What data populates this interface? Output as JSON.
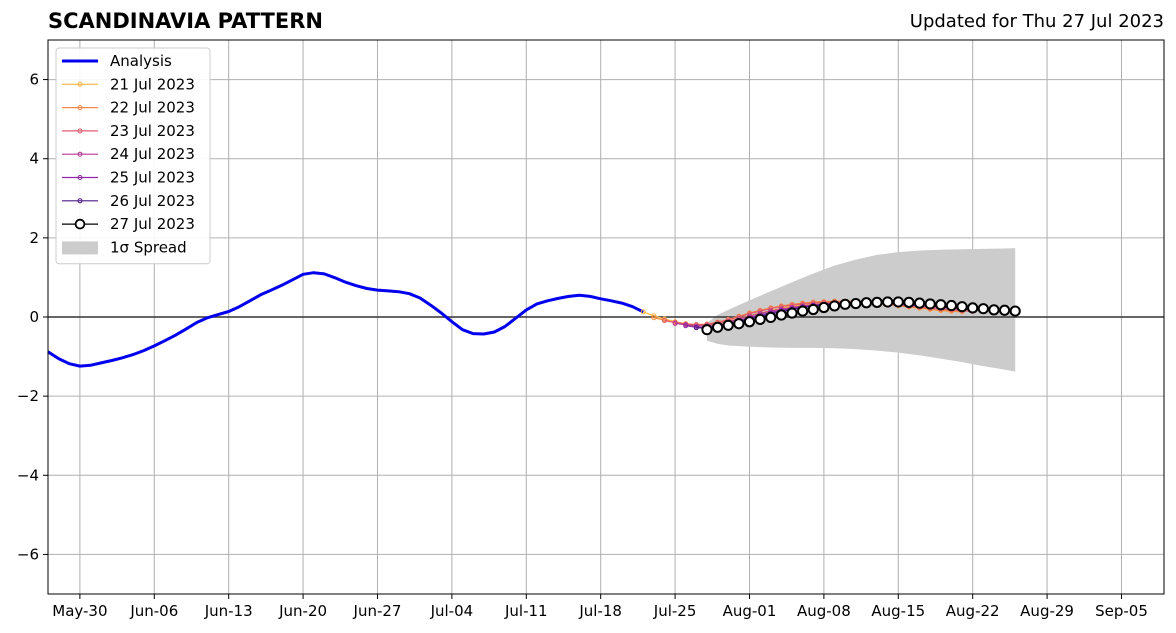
{
  "chart_data": {
    "type": "line",
    "title": "SCANDINAVIA PATTERN",
    "subtitle": "Updated for Thu 27 Jul 2023",
    "xlabel": "",
    "ylabel": "",
    "xlim": [
      "2023-05-27",
      "2023-09-09"
    ],
    "ylim": [
      -7,
      7
    ],
    "yticks": [
      -6,
      -4,
      -2,
      0,
      2,
      4,
      6
    ],
    "ytick_labels": [
      "−6",
      "−4",
      "−2",
      "0",
      "2",
      "4",
      "6"
    ],
    "xticks": [
      "2023-05-30",
      "2023-06-06",
      "2023-06-13",
      "2023-06-20",
      "2023-06-27",
      "2023-07-04",
      "2023-07-11",
      "2023-07-18",
      "2023-07-25",
      "2023-08-01",
      "2023-08-08",
      "2023-08-15",
      "2023-08-22",
      "2023-08-29",
      "2023-09-05"
    ],
    "xtick_labels": [
      "May-30",
      "Jun-06",
      "Jun-13",
      "Jun-20",
      "Jun-27",
      "Jul-04",
      "Jul-11",
      "Jul-18",
      "Jul-25",
      "Aug-01",
      "Aug-08",
      "Aug-15",
      "Aug-22",
      "Aug-29",
      "Sep-05"
    ],
    "grid": true,
    "legend_position": "top-left",
    "series": [
      {
        "name": "Analysis",
        "color": "#0000ee",
        "style": "thick-line",
        "x": [
          "2023-05-27",
          "2023-05-28",
          "2023-05-29",
          "2023-05-30",
          "2023-05-31",
          "2023-06-01",
          "2023-06-02",
          "2023-06-03",
          "2023-06-04",
          "2023-06-05",
          "2023-06-06",
          "2023-06-07",
          "2023-06-08",
          "2023-06-09",
          "2023-06-10",
          "2023-06-11",
          "2023-06-12",
          "2023-06-13",
          "2023-06-14",
          "2023-06-15",
          "2023-06-16",
          "2023-06-17",
          "2023-06-18",
          "2023-06-19",
          "2023-06-20",
          "2023-06-21",
          "2023-06-22",
          "2023-06-23",
          "2023-06-24",
          "2023-06-25",
          "2023-06-26",
          "2023-06-27",
          "2023-06-28",
          "2023-06-29",
          "2023-06-30",
          "2023-07-01",
          "2023-07-02",
          "2023-07-03",
          "2023-07-04",
          "2023-07-05",
          "2023-07-06",
          "2023-07-07",
          "2023-07-08",
          "2023-07-09",
          "2023-07-10",
          "2023-07-11",
          "2023-07-12",
          "2023-07-13",
          "2023-07-14",
          "2023-07-15",
          "2023-07-16",
          "2023-07-17",
          "2023-07-18",
          "2023-07-19",
          "2023-07-20",
          "2023-07-21",
          "2023-07-22"
        ],
        "y": [
          -0.88,
          -1.05,
          -1.18,
          -1.24,
          -1.22,
          -1.16,
          -1.1,
          -1.03,
          -0.95,
          -0.85,
          -0.73,
          -0.6,
          -0.46,
          -0.3,
          -0.14,
          -0.02,
          0.06,
          0.14,
          0.26,
          0.41,
          0.56,
          0.68,
          0.8,
          0.94,
          1.08,
          1.12,
          1.09,
          0.99,
          0.88,
          0.79,
          0.72,
          0.68,
          0.66,
          0.64,
          0.59,
          0.48,
          0.3,
          0.1,
          -0.12,
          -0.32,
          -0.42,
          -0.43,
          -0.38,
          -0.24,
          -0.03,
          0.18,
          0.33,
          0.41,
          0.47,
          0.52,
          0.55,
          0.52,
          0.46,
          0.41,
          0.35,
          0.26,
          0.13
        ]
      },
      {
        "name": "21 Jul 2023",
        "color": "#ffb445",
        "style": "small-marker",
        "x": [
          "2023-07-22",
          "2023-07-23",
          "2023-07-24",
          "2023-07-25",
          "2023-07-26",
          "2023-07-27",
          "2023-07-28",
          "2023-07-29",
          "2023-07-30",
          "2023-07-31",
          "2023-08-01",
          "2023-08-02",
          "2023-08-03",
          "2023-08-04",
          "2023-08-05",
          "2023-08-06",
          "2023-08-07",
          "2023-08-08",
          "2023-08-09",
          "2023-08-10",
          "2023-08-11",
          "2023-08-12",
          "2023-08-13",
          "2023-08-14",
          "2023-08-15",
          "2023-08-16",
          "2023-08-17",
          "2023-08-18",
          "2023-08-19",
          "2023-08-20"
        ],
        "y": [
          0.13,
          0.03,
          -0.05,
          -0.12,
          -0.17,
          -0.2,
          -0.2,
          -0.16,
          -0.1,
          -0.04,
          0.03,
          0.1,
          0.16,
          0.22,
          0.27,
          0.31,
          0.34,
          0.36,
          0.38,
          0.38,
          0.37,
          0.35,
          0.33,
          0.31,
          0.28,
          0.25,
          0.22,
          0.19,
          0.16,
          0.14
        ]
      },
      {
        "name": "22 Jul 2023",
        "color": "#f58a45",
        "style": "small-marker",
        "x": [
          "2023-07-23",
          "2023-07-24",
          "2023-07-25",
          "2023-07-26",
          "2023-07-27",
          "2023-07-28",
          "2023-07-29",
          "2023-07-30",
          "2023-07-31",
          "2023-08-01",
          "2023-08-02",
          "2023-08-03",
          "2023-08-04",
          "2023-08-05",
          "2023-08-06",
          "2023-08-07",
          "2023-08-08",
          "2023-08-09",
          "2023-08-10",
          "2023-08-11",
          "2023-08-12",
          "2023-08-13",
          "2023-08-14",
          "2023-08-15",
          "2023-08-16",
          "2023-08-17",
          "2023-08-18",
          "2023-08-19",
          "2023-08-20",
          "2023-08-21"
        ],
        "y": [
          -0.02,
          -0.08,
          -0.13,
          -0.17,
          -0.19,
          -0.18,
          -0.13,
          -0.06,
          0.02,
          0.1,
          0.17,
          0.23,
          0.28,
          0.32,
          0.35,
          0.38,
          0.39,
          0.4,
          0.4,
          0.39,
          0.37,
          0.35,
          0.32,
          0.29,
          0.26,
          0.23,
          0.2,
          0.17,
          0.15,
          0.13
        ]
      },
      {
        "name": "23 Jul 2023",
        "color": "#e05c6e",
        "style": "small-marker",
        "x": [
          "2023-07-24",
          "2023-07-25",
          "2023-07-26",
          "2023-07-27",
          "2023-07-28",
          "2023-07-29",
          "2023-07-30",
          "2023-07-31",
          "2023-08-01",
          "2023-08-02",
          "2023-08-03",
          "2023-08-04",
          "2023-08-05",
          "2023-08-06",
          "2023-08-07",
          "2023-08-08",
          "2023-08-09",
          "2023-08-10",
          "2023-08-11",
          "2023-08-12",
          "2023-08-13",
          "2023-08-14",
          "2023-08-15",
          "2023-08-16",
          "2023-08-17",
          "2023-08-18",
          "2023-08-19",
          "2023-08-20",
          "2023-08-21",
          "2023-08-22"
        ],
        "y": [
          -0.09,
          -0.14,
          -0.18,
          -0.2,
          -0.19,
          -0.14,
          -0.07,
          0.0,
          0.08,
          0.15,
          0.21,
          0.26,
          0.3,
          0.33,
          0.35,
          0.37,
          0.38,
          0.38,
          0.37,
          0.36,
          0.34,
          0.32,
          0.3,
          0.27,
          0.25,
          0.22,
          0.2,
          0.18,
          0.16,
          0.14
        ]
      },
      {
        "name": "24 Jul 2023",
        "color": "#b5388f",
        "style": "small-marker",
        "x": [
          "2023-07-25",
          "2023-07-26",
          "2023-07-27",
          "2023-07-28",
          "2023-07-29",
          "2023-07-30",
          "2023-07-31",
          "2023-08-01",
          "2023-08-02",
          "2023-08-03",
          "2023-08-04",
          "2023-08-05",
          "2023-08-06",
          "2023-08-07",
          "2023-08-08",
          "2023-08-09",
          "2023-08-10",
          "2023-08-11",
          "2023-08-12",
          "2023-08-13",
          "2023-08-14",
          "2023-08-15",
          "2023-08-16",
          "2023-08-17",
          "2023-08-18",
          "2023-08-19",
          "2023-08-20",
          "2023-08-21",
          "2023-08-22",
          "2023-08-23"
        ],
        "y": [
          -0.16,
          -0.2,
          -0.23,
          -0.22,
          -0.18,
          -0.12,
          -0.05,
          0.02,
          0.09,
          0.15,
          0.2,
          0.24,
          0.28,
          0.31,
          0.33,
          0.35,
          0.36,
          0.36,
          0.36,
          0.35,
          0.34,
          0.32,
          0.3,
          0.28,
          0.26,
          0.24,
          0.22,
          0.2,
          0.18,
          0.16
        ]
      },
      {
        "name": "25 Jul 2023",
        "color": "#8e2aa6",
        "style": "small-marker",
        "x": [
          "2023-07-26",
          "2023-07-27",
          "2023-07-28",
          "2023-07-29",
          "2023-07-30",
          "2023-07-31",
          "2023-08-01",
          "2023-08-02",
          "2023-08-03",
          "2023-08-04",
          "2023-08-05",
          "2023-08-06",
          "2023-08-07",
          "2023-08-08",
          "2023-08-09",
          "2023-08-10",
          "2023-08-11",
          "2023-08-12",
          "2023-08-13",
          "2023-08-14",
          "2023-08-15",
          "2023-08-16",
          "2023-08-17",
          "2023-08-18",
          "2023-08-19",
          "2023-08-20",
          "2023-08-21",
          "2023-08-22",
          "2023-08-23",
          "2023-08-24"
        ],
        "y": [
          -0.22,
          -0.26,
          -0.26,
          -0.22,
          -0.16,
          -0.09,
          -0.02,
          0.05,
          0.11,
          0.17,
          0.22,
          0.26,
          0.29,
          0.32,
          0.34,
          0.35,
          0.36,
          0.36,
          0.35,
          0.34,
          0.33,
          0.31,
          0.29,
          0.27,
          0.25,
          0.23,
          0.21,
          0.19,
          0.17,
          0.15
        ]
      },
      {
        "name": "26 Jul 2023",
        "color": "#4a1a8a",
        "style": "small-marker",
        "x": [
          "2023-07-27",
          "2023-07-28",
          "2023-07-29",
          "2023-07-30",
          "2023-07-31",
          "2023-08-01",
          "2023-08-02",
          "2023-08-03",
          "2023-08-04",
          "2023-08-05",
          "2023-08-06",
          "2023-08-07",
          "2023-08-08",
          "2023-08-09",
          "2023-08-10",
          "2023-08-11",
          "2023-08-12",
          "2023-08-13",
          "2023-08-14",
          "2023-08-15",
          "2023-08-16",
          "2023-08-17",
          "2023-08-18",
          "2023-08-19",
          "2023-08-20",
          "2023-08-21",
          "2023-08-22",
          "2023-08-23",
          "2023-08-24",
          "2023-08-25"
        ],
        "y": [
          -0.27,
          -0.28,
          -0.25,
          -0.19,
          -0.12,
          -0.05,
          0.02,
          0.08,
          0.14,
          0.19,
          0.24,
          0.28,
          0.31,
          0.33,
          0.35,
          0.36,
          0.37,
          0.37,
          0.36,
          0.35,
          0.34,
          0.32,
          0.3,
          0.28,
          0.26,
          0.24,
          0.22,
          0.2,
          0.18,
          0.16
        ]
      },
      {
        "name": "27 Jul 2023",
        "color": "#000000",
        "style": "large-marker",
        "x": [
          "2023-07-28",
          "2023-07-29",
          "2023-07-30",
          "2023-07-31",
          "2023-08-01",
          "2023-08-02",
          "2023-08-03",
          "2023-08-04",
          "2023-08-05",
          "2023-08-06",
          "2023-08-07",
          "2023-08-08",
          "2023-08-09",
          "2023-08-10",
          "2023-08-11",
          "2023-08-12",
          "2023-08-13",
          "2023-08-14",
          "2023-08-15",
          "2023-08-16",
          "2023-08-17",
          "2023-08-18",
          "2023-08-19",
          "2023-08-20",
          "2023-08-21",
          "2023-08-22",
          "2023-08-23",
          "2023-08-24",
          "2023-08-25",
          "2023-08-26"
        ],
        "y": [
          -0.32,
          -0.26,
          -0.21,
          -0.17,
          -0.12,
          -0.06,
          -0.01,
          0.05,
          0.1,
          0.15,
          0.19,
          0.24,
          0.28,
          0.32,
          0.34,
          0.36,
          0.37,
          0.38,
          0.38,
          0.37,
          0.35,
          0.33,
          0.31,
          0.29,
          0.26,
          0.23,
          0.21,
          0.18,
          0.17,
          0.15
        ]
      }
    ],
    "spread": {
      "name": "1σ Spread",
      "color": "#cccccc",
      "x": [
        "2023-07-28",
        "2023-07-29",
        "2023-07-30",
        "2023-08-01",
        "2023-08-03",
        "2023-08-05",
        "2023-08-07",
        "2023-08-09",
        "2023-08-11",
        "2023-08-13",
        "2023-08-15",
        "2023-08-17",
        "2023-08-19",
        "2023-08-21",
        "2023-08-23",
        "2023-08-25",
        "2023-08-26"
      ],
      "upper": [
        -0.15,
        0.05,
        0.18,
        0.42,
        0.65,
        0.88,
        1.1,
        1.3,
        1.45,
        1.57,
        1.64,
        1.68,
        1.7,
        1.71,
        1.72,
        1.73,
        1.74
      ],
      "lower": [
        -0.6,
        -0.68,
        -0.72,
        -0.75,
        -0.77,
        -0.78,
        -0.78,
        -0.79,
        -0.81,
        -0.85,
        -0.9,
        -0.97,
        -1.05,
        -1.14,
        -1.24,
        -1.33,
        -1.38
      ]
    }
  }
}
